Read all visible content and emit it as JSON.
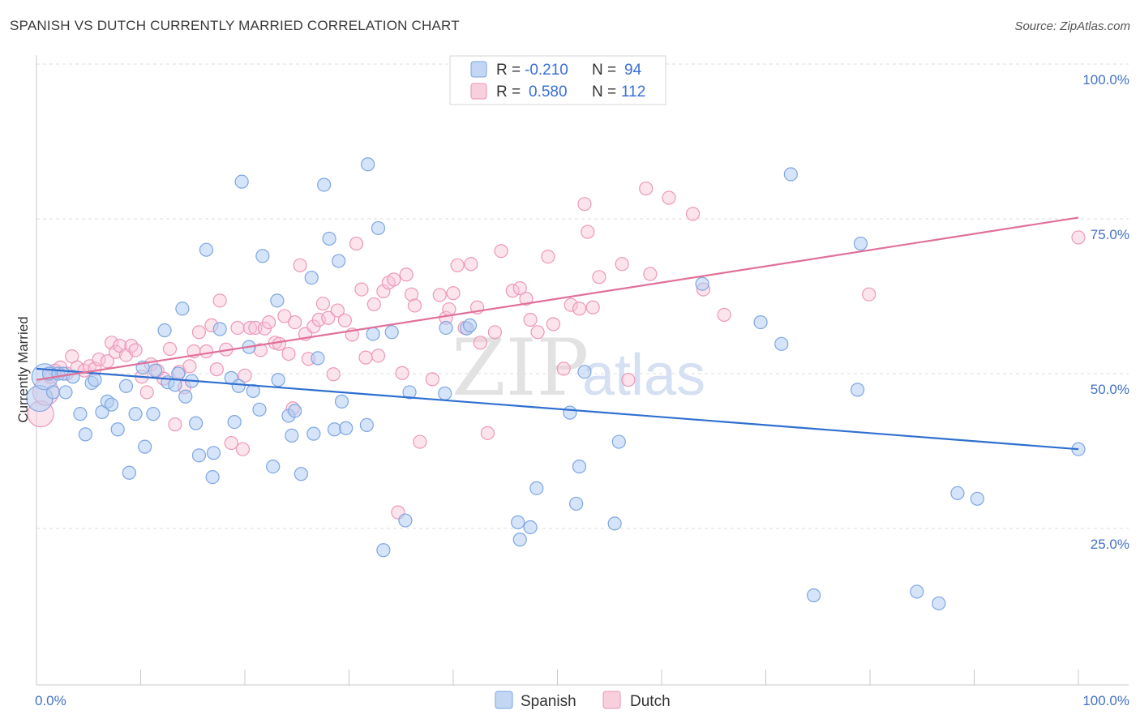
{
  "title": "SPANISH VS DUTCH CURRENTLY MARRIED CORRELATION CHART",
  "source": "Source: ZipAtlas.com",
  "watermark": {
    "zip": "ZIP",
    "atlas": "atlas"
  },
  "legend_top": {
    "rows": [
      {
        "r_label": "R =",
        "r_value": "-0.210",
        "n_label": "N =",
        "n_value": "94"
      },
      {
        "r_label": "R =",
        "r_value": "0.580",
        "n_label": "N =",
        "n_value": "112"
      }
    ]
  },
  "chart_data": {
    "type": "scatter",
    "title": "SPANISH VS DUTCH CURRENTLY MARRIED CORRELATION CHART",
    "xlabel": "",
    "ylabel": "Currently Married",
    "xlim": [
      0,
      100
    ],
    "ylim": [
      0,
      104
    ],
    "x_tick_labels": [
      "0.0%",
      "100.0%"
    ],
    "y_ticks": [
      25,
      50,
      75,
      100
    ],
    "y_tick_labels": [
      "25.0%",
      "50.0%",
      "75.0%",
      "100.0%"
    ],
    "grid": true,
    "legend_position": "top-center",
    "colors": {
      "Spanish": "#6f9be0",
      "Dutch": "#ee8fb0",
      "Spanish_line": "#2f6fd0",
      "Dutch_line": "#e0709a"
    },
    "series": [
      {
        "name": "Spanish",
        "trend": {
          "x": [
            0,
            100
          ],
          "y": [
            50.8,
            37.8
          ]
        },
        "points": [
          [
            0.3,
            46
          ],
          [
            0.8,
            49.5
          ],
          [
            1.2,
            50
          ],
          [
            1.6,
            47
          ],
          [
            2.1,
            50
          ],
          [
            2.6,
            50
          ],
          [
            2.8,
            47
          ],
          [
            3.5,
            49.5
          ],
          [
            4.2,
            43.5
          ],
          [
            4.7,
            40.2
          ],
          [
            5.3,
            48.5
          ],
          [
            5.6,
            49
          ],
          [
            6.3,
            43.8
          ],
          [
            6.8,
            45.5
          ],
          [
            7.2,
            45
          ],
          [
            7.8,
            41
          ],
          [
            8.6,
            48
          ],
          [
            8.9,
            34
          ],
          [
            9.5,
            43.5
          ],
          [
            10.2,
            51
          ],
          [
            10.4,
            38.2
          ],
          [
            11.2,
            43.5
          ],
          [
            11.4,
            50.5
          ],
          [
            12.3,
            57
          ],
          [
            12.6,
            48.6
          ],
          [
            13.3,
            48.2
          ],
          [
            13.6,
            50
          ],
          [
            14.0,
            60.5
          ],
          [
            14.3,
            46.3
          ],
          [
            14.9,
            48.8
          ],
          [
            15.3,
            42
          ],
          [
            15.6,
            36.8
          ],
          [
            16.3,
            70
          ],
          [
            16.9,
            33.3
          ],
          [
            17.0,
            37.2
          ],
          [
            17.6,
            57.2
          ],
          [
            18.7,
            49.3
          ],
          [
            19.0,
            42.2
          ],
          [
            19.4,
            48
          ],
          [
            19.7,
            81
          ],
          [
            20.4,
            54.3
          ],
          [
            20.8,
            47.2
          ],
          [
            21.4,
            44.2
          ],
          [
            21.7,
            69
          ],
          [
            22.7,
            35
          ],
          [
            23.1,
            61.8
          ],
          [
            23.2,
            49
          ],
          [
            24.2,
            43.2
          ],
          [
            24.5,
            40
          ],
          [
            24.8,
            44
          ],
          [
            25.4,
            33.8
          ],
          [
            26.4,
            65.5
          ],
          [
            26.6,
            40.3
          ],
          [
            27.0,
            52.5
          ],
          [
            27.6,
            80.5
          ],
          [
            28.1,
            71.8
          ],
          [
            28.6,
            41
          ],
          [
            29.0,
            68.2
          ],
          [
            29.3,
            45.5
          ],
          [
            29.7,
            41.2
          ],
          [
            31.7,
            41.7
          ],
          [
            31.8,
            83.8
          ],
          [
            32.3,
            56.4
          ],
          [
            32.8,
            73.5
          ],
          [
            33.3,
            21.5
          ],
          [
            34.1,
            56.7
          ],
          [
            35.4,
            26.3
          ],
          [
            35.8,
            47
          ],
          [
            39.2,
            46.8
          ],
          [
            39.3,
            57.4
          ],
          [
            41.3,
            57.3
          ],
          [
            41.6,
            57.8
          ],
          [
            46.2,
            26
          ],
          [
            46.4,
            23.2
          ],
          [
            47.4,
            25.2
          ],
          [
            48.0,
            31.5
          ],
          [
            51.2,
            43.7
          ],
          [
            51.8,
            29
          ],
          [
            52.1,
            35
          ],
          [
            52.6,
            50.3
          ],
          [
            55.5,
            25.8
          ],
          [
            55.9,
            39
          ],
          [
            63.9,
            64.5
          ],
          [
            69.5,
            58.3
          ],
          [
            71.5,
            54.8
          ],
          [
            72.4,
            82.2
          ],
          [
            74.6,
            14.2
          ],
          [
            78.8,
            47.4
          ],
          [
            79.1,
            71
          ],
          [
            84.5,
            14.8
          ],
          [
            86.6,
            12.9
          ],
          [
            88.4,
            30.7
          ],
          [
            90.3,
            29.8
          ],
          [
            100,
            37.8
          ]
        ]
      },
      {
        "name": "Dutch",
        "trend": {
          "x": [
            0,
            100
          ],
          "y": [
            49.0,
            75.2
          ]
        },
        "points": [
          [
            0.4,
            43.5
          ],
          [
            0.9,
            47
          ],
          [
            1.3,
            49.5
          ],
          [
            1.8,
            50.5
          ],
          [
            2.3,
            51
          ],
          [
            2.9,
            50
          ],
          [
            3.4,
            52.8
          ],
          [
            3.9,
            51
          ],
          [
            4.6,
            50.5
          ],
          [
            5.1,
            51.2
          ],
          [
            5.6,
            50.8
          ],
          [
            6.0,
            52.3
          ],
          [
            6.8,
            52
          ],
          [
            7.2,
            55
          ],
          [
            7.6,
            53.5
          ],
          [
            8.0,
            54.5
          ],
          [
            8.6,
            53
          ],
          [
            9.1,
            54.5
          ],
          [
            9.5,
            53.8
          ],
          [
            10.1,
            49.5
          ],
          [
            10.6,
            47
          ],
          [
            11.0,
            51.5
          ],
          [
            11.6,
            50.5
          ],
          [
            12.2,
            49.2
          ],
          [
            12.8,
            54
          ],
          [
            13.3,
            41.8
          ],
          [
            13.7,
            50.3
          ],
          [
            14.2,
            47.8
          ],
          [
            14.7,
            51.2
          ],
          [
            15.1,
            53.6
          ],
          [
            15.6,
            56.7
          ],
          [
            16.3,
            53.6
          ],
          [
            16.8,
            57.8
          ],
          [
            17.3,
            50.7
          ],
          [
            17.6,
            61.8
          ],
          [
            18.2,
            53.9
          ],
          [
            18.7,
            38.8
          ],
          [
            19.3,
            57.4
          ],
          [
            19.8,
            37.8
          ],
          [
            20.0,
            49.7
          ],
          [
            20.5,
            57.4
          ],
          [
            21.0,
            57.4
          ],
          [
            21.5,
            53.8
          ],
          [
            21.9,
            57.3
          ],
          [
            22.3,
            58.3
          ],
          [
            22.9,
            55
          ],
          [
            23.3,
            54.8
          ],
          [
            23.8,
            59.3
          ],
          [
            24.2,
            53.2
          ],
          [
            24.6,
            44.4
          ],
          [
            24.8,
            58.3
          ],
          [
            25.3,
            67.5
          ],
          [
            25.8,
            56.4
          ],
          [
            26.1,
            52.4
          ],
          [
            26.6,
            57.6
          ],
          [
            27.1,
            58.7
          ],
          [
            27.5,
            61.3
          ],
          [
            28.0,
            59
          ],
          [
            28.5,
            49.9
          ],
          [
            28.9,
            60.2
          ],
          [
            29.6,
            58.6
          ],
          [
            30.3,
            56.3
          ],
          [
            30.7,
            71
          ],
          [
            31.2,
            63.6
          ],
          [
            31.6,
            52.6
          ],
          [
            32.4,
            61.2
          ],
          [
            32.8,
            52.9
          ],
          [
            33.3,
            63.3
          ],
          [
            33.8,
            64.7
          ],
          [
            34.3,
            65.2
          ],
          [
            34.7,
            27.6
          ],
          [
            35.1,
            50.1
          ],
          [
            35.5,
            66
          ],
          [
            36.0,
            62.8
          ],
          [
            36.3,
            61
          ],
          [
            36.8,
            39
          ],
          [
            38.0,
            49.1
          ],
          [
            38.7,
            62.7
          ],
          [
            39.3,
            59
          ],
          [
            39.6,
            60.4
          ],
          [
            40.0,
            63
          ],
          [
            40.4,
            67.5
          ],
          [
            41.1,
            57.4
          ],
          [
            41.7,
            67.7
          ],
          [
            42.3,
            60.7
          ],
          [
            42.6,
            55
          ],
          [
            43.3,
            40.4
          ],
          [
            44.0,
            56.7
          ],
          [
            44.6,
            69.8
          ],
          [
            45.7,
            63.4
          ],
          [
            46.4,
            63.8
          ],
          [
            47.0,
            62.1
          ],
          [
            47.4,
            58.7
          ],
          [
            48.1,
            56.7
          ],
          [
            49.1,
            68.9
          ],
          [
            49.6,
            58
          ],
          [
            50.6,
            50.8
          ],
          [
            51.3,
            61.1
          ],
          [
            52.1,
            60.5
          ],
          [
            52.6,
            77.4
          ],
          [
            52.9,
            72.9
          ],
          [
            53.4,
            60.7
          ],
          [
            54.0,
            65.6
          ],
          [
            56.2,
            67.7
          ],
          [
            56.8,
            49
          ],
          [
            58.5,
            79.9
          ],
          [
            58.9,
            66.1
          ],
          [
            60.7,
            78.4
          ],
          [
            63.0,
            75.8
          ],
          [
            64.0,
            63.6
          ],
          [
            66.0,
            59.5
          ],
          [
            79.9,
            62.8
          ],
          [
            100,
            72
          ]
        ]
      }
    ]
  },
  "legend_bottom": {
    "items": [
      "Spanish",
      "Dutch"
    ]
  }
}
